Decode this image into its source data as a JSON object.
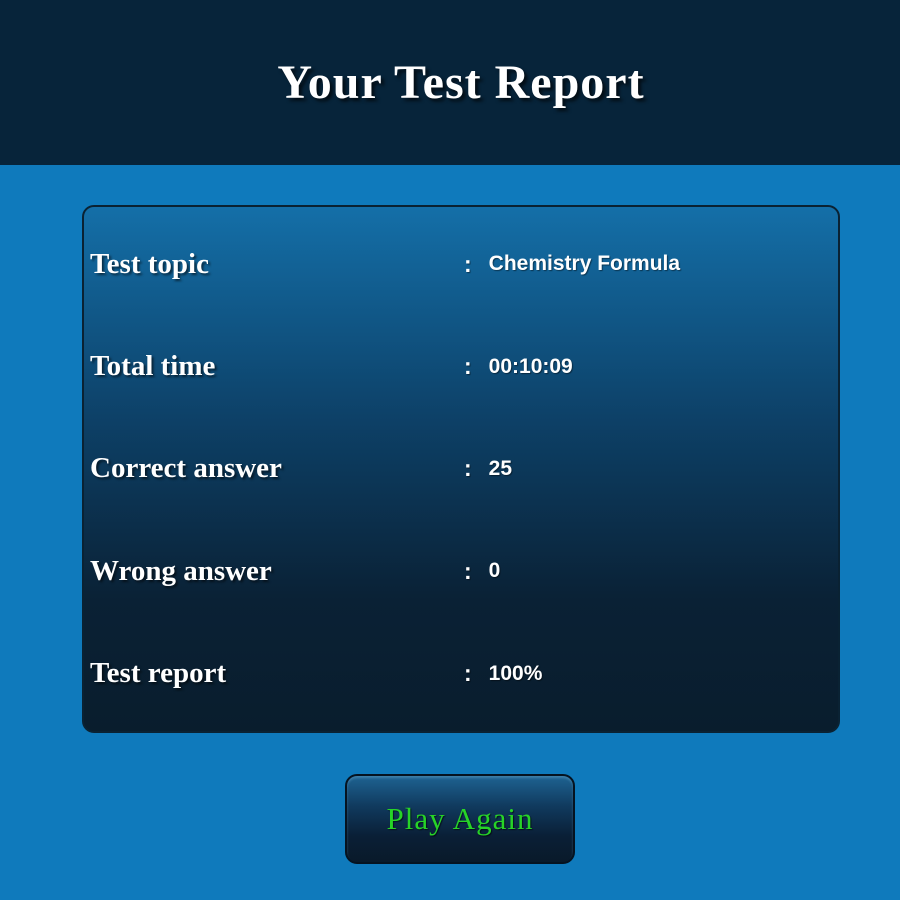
{
  "header": {
    "title": "Your Test Report"
  },
  "report": {
    "rows": [
      {
        "label": "Test topic",
        "separator": ":",
        "value": "Chemistry Formula"
      },
      {
        "label": "Total time",
        "separator": ":",
        "value": "00:10:09"
      },
      {
        "label": "Correct answer",
        "separator": ":",
        "value": "25"
      },
      {
        "label": "Wrong answer",
        "separator": ":",
        "value": "0"
      },
      {
        "label": "Test report",
        "separator": ":",
        "value": "100%"
      }
    ]
  },
  "actions": {
    "play_again_label": "Play Again"
  },
  "colors": {
    "page_background": "#0F7ABC",
    "header_background": "#07243A",
    "card_gradient_top": "#146FA8",
    "card_gradient_bottom": "#091D2D",
    "card_border": "#0A2233",
    "button_text": "#27D327",
    "text": "#FFFFFF"
  }
}
